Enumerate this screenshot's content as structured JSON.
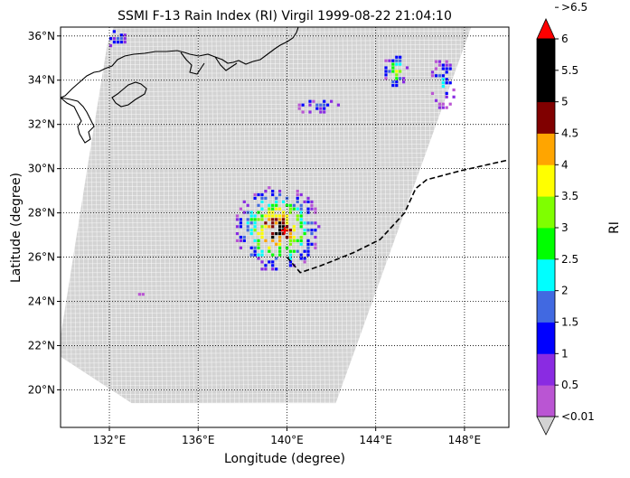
{
  "title": "SSMI F-13 Rain Index (RI) Virgil 1999-08-22 21:04:10",
  "xlabel": "Longitude (degree)",
  "ylabel": "Latitude (degree)",
  "colorbar_label": "RI",
  "map": {
    "lon_range": [
      129.8,
      150.0
    ],
    "lat_range": [
      18.3,
      36.4
    ],
    "lon_ticks": [
      {
        "value": 132,
        "label": "132°E"
      },
      {
        "value": 136,
        "label": "136°E"
      },
      {
        "value": 140,
        "label": "140°E"
      },
      {
        "value": 144,
        "label": "144°E"
      },
      {
        "value": 148,
        "label": "148°E"
      }
    ],
    "lat_ticks": [
      {
        "value": 20,
        "label": "20°N"
      },
      {
        "value": 22,
        "label": "22°N"
      },
      {
        "value": 24,
        "label": "24°N"
      },
      {
        "value": 26,
        "label": "26°N"
      },
      {
        "value": 28,
        "label": "28°N"
      },
      {
        "value": 30,
        "label": "30°N"
      },
      {
        "value": 32,
        "label": "32°N"
      },
      {
        "value": 34,
        "label": "34°N"
      },
      {
        "value": 36,
        "label": "36°N"
      }
    ],
    "grid": "dotted",
    "swath_color": "#d3d3d3",
    "swath_polygon": [
      [
        129.8,
        22.4
      ],
      [
        131.0,
        30.0
      ],
      [
        131.9,
        35.6
      ],
      [
        132.2,
        36.4
      ],
      [
        148.3,
        36.4
      ],
      [
        142.2,
        19.4
      ],
      [
        133.0,
        19.4
      ],
      [
        129.8,
        21.5
      ]
    ],
    "coastline_color": "#000000",
    "track_style": "dashed"
  },
  "colorbar": {
    "levels": [
      {
        "label": "<0.01",
        "color": "#d3d3d3"
      },
      {
        "label": "0.5",
        "color": "#ba55d3"
      },
      {
        "label": "1",
        "color": "#8a2be2"
      },
      {
        "label": "1.5",
        "color": "#0000ff"
      },
      {
        "label": "2",
        "color": "#4169e1"
      },
      {
        "label": "2.5",
        "color": "#00ffff"
      },
      {
        "label": "3",
        "color": "#00ff00"
      },
      {
        "label": "3.5",
        "color": "#7fff00"
      },
      {
        "label": "4",
        "color": "#ffff00"
      },
      {
        "label": "4.5",
        "color": "#ffa500"
      },
      {
        "label": "5",
        "color": "#800000"
      },
      {
        "label": "5.5",
        "color": "#000000"
      },
      {
        "label": "6",
        "color": "#000000"
      },
      {
        "label": ">6.5",
        "color": "#ff0000"
      }
    ],
    "bands": [
      "#ba55d3",
      "#8a2be2",
      "#0000ff",
      "#4169e1",
      "#00ffff",
      "#00ff00",
      "#7fff00",
      "#ffff00",
      "#ffa500",
      "#800000",
      "#000000",
      "#000000"
    ],
    "under_color": "#d3d3d3",
    "over_color": "#ff0000"
  },
  "chart_data": {
    "type": "heatmap",
    "title": "SSMI F-13 Rain Index (RI) Virgil 1999-08-22 21:04:10",
    "xlabel": "Longitude (degree)",
    "ylabel": "Latitude (degree)",
    "xlim": [
      129.8,
      150.0
    ],
    "ylim": [
      18.3,
      36.4
    ],
    "legend": "colorbar-right",
    "typhoon_track": [
      [
        140.0,
        26.0
      ],
      [
        140.6,
        25.3
      ],
      [
        141.5,
        25.6
      ],
      [
        143.0,
        26.2
      ],
      [
        144.2,
        26.8
      ],
      [
        145.3,
        28.0
      ],
      [
        145.8,
        29.1
      ],
      [
        146.3,
        29.5
      ],
      [
        147.8,
        29.9
      ],
      [
        150.0,
        30.4
      ]
    ],
    "typhoon_center": [
      139.9,
      27.2
    ],
    "rain_clusters": [
      {
        "region": "main",
        "lon_range": [
          137.6,
          141.6
        ],
        "lat_range": [
          25.3,
          29.2
        ],
        "max_ri": ">6.5"
      },
      {
        "region": "northeast",
        "lon_range": [
          144.3,
          145.5
        ],
        "lat_range": [
          33.6,
          35.2
        ],
        "max_ri": "4"
      },
      {
        "region": "east-edge",
        "lon_range": [
          146.4,
          147.6
        ],
        "lat_range": [
          32.6,
          35.0
        ],
        "max_ri": "2"
      },
      {
        "region": "north-central",
        "lon_range": [
          140.4,
          142.4
        ],
        "lat_range": [
          32.4,
          33.2
        ],
        "max_ri": "1.5"
      },
      {
        "region": "northwest",
        "lon_range": [
          131.9,
          132.8
        ],
        "lat_range": [
          35.4,
          36.4
        ],
        "max_ri": "1.5"
      },
      {
        "region": "southwest",
        "lon_range": [
          133.2,
          133.6
        ],
        "lat_range": [
          24.0,
          24.5
        ],
        "max_ri": "0.5"
      }
    ]
  }
}
